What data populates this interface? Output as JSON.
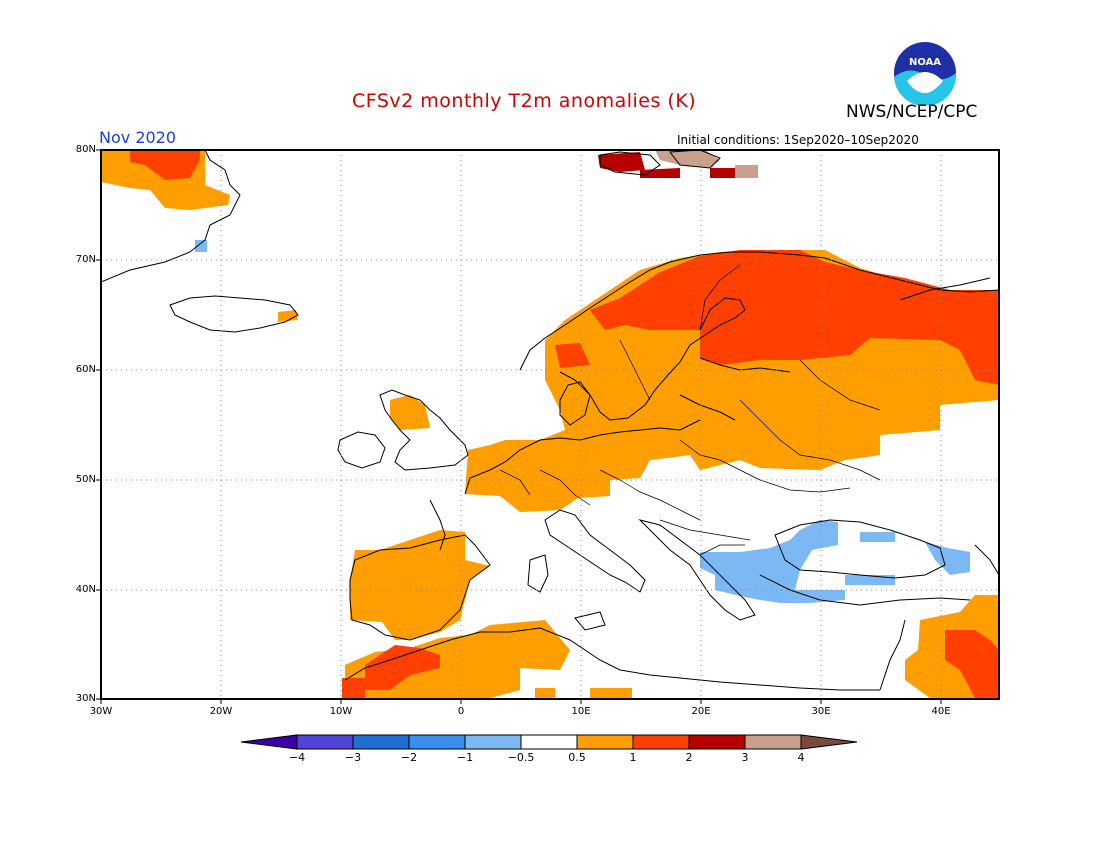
{
  "header": {
    "title": "CFSv2 monthly T2m anomalies (K)",
    "agency": "NWS/NCEP/CPC",
    "month": "Nov 2020",
    "initial_conditions": "Initial conditions: 1Sep2020–10Sep2020",
    "logo_text": "NOAA"
  },
  "map": {
    "region": "Europe",
    "lon_range": [
      -30,
      45
    ],
    "lat_range": [
      30,
      80
    ],
    "lat_labels": [
      "80N",
      "70N",
      "60N",
      "50N",
      "40N",
      "30N"
    ],
    "lon_labels": [
      "30W",
      "20W",
      "10W",
      "0",
      "10E",
      "20E",
      "30E",
      "40E"
    ]
  },
  "colorbar": {
    "labels": [
      "−4",
      "−3",
      "−2",
      "−1",
      "−0.5",
      "0.5",
      "1",
      "2",
      "3",
      "4"
    ],
    "colors": [
      "#3a00a8",
      "#4f44d4",
      "#1f6fd2",
      "#3a8fec",
      "#7cb9f4",
      "#ffffff",
      "#ff9e00",
      "#ff4000",
      "#b40000",
      "#c8a08c",
      "#7a4a3c"
    ]
  },
  "colors": {
    "title": "#d40000",
    "month": "#1a3fe0",
    "anomaly_05_1": "#ff9e00",
    "anomaly_1_2": "#ff4000",
    "anomaly_2_3": "#b40000",
    "anomaly_3_4": "#c8a08c",
    "anomaly_neg": "#7cb9f4"
  }
}
